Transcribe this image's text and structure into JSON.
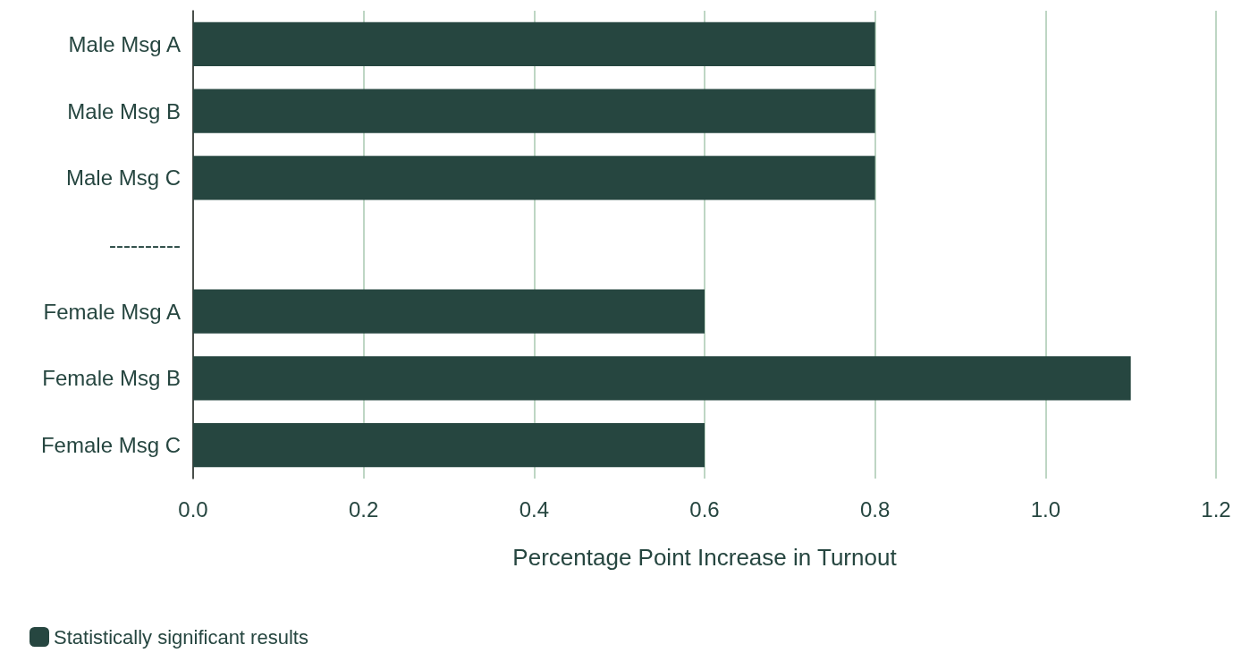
{
  "chart_data": {
    "type": "bar",
    "orientation": "horizontal",
    "xlabel": "Percentage Point Increase in Turnout",
    "categories": [
      "Male Msg A",
      "Male Msg B",
      "Male Msg C",
      "----------",
      "Female Msg A",
      "Female Msg B",
      "Female Msg C"
    ],
    "series": [
      {
        "name": "Statistically significant results",
        "color": "#264640",
        "values": [
          0.8,
          0.8,
          0.8,
          null,
          0.6,
          1.1,
          0.6
        ]
      }
    ],
    "xlim": [
      0,
      1.2
    ],
    "xticks": [
      {
        "value": 0,
        "label": "0.0"
      },
      0.2,
      0.4,
      0.6,
      0.8,
      {
        "value": 1,
        "label": "1.0"
      },
      1.2
    ],
    "grid": "x",
    "legend": "bottom left"
  }
}
